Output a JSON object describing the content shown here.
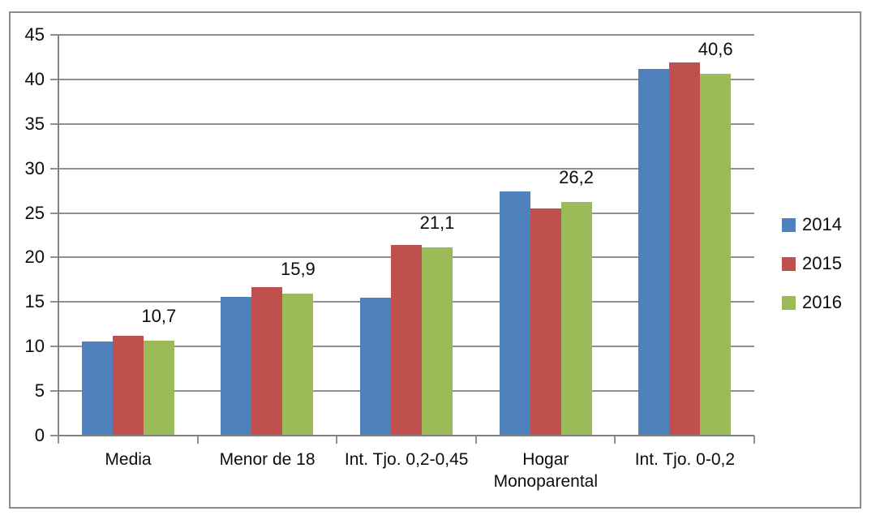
{
  "chart_data": {
    "type": "bar",
    "title": "",
    "xlabel": "",
    "ylabel": "",
    "categories": [
      "Media",
      "Menor de 18",
      "Int. Tjo. 0,2-0,45",
      "Hogar Monoparental",
      "Int. Tjo. 0-0,2"
    ],
    "series": [
      {
        "name": "2014",
        "color": "#4F81BD",
        "values": [
          10.6,
          15.6,
          15.5,
          27.4,
          41.2
        ]
      },
      {
        "name": "2015",
        "color": "#C0504D",
        "values": [
          11.2,
          16.7,
          21.4,
          25.5,
          41.9
        ]
      },
      {
        "name": "2016",
        "color": "#9BBB59",
        "values": [
          10.7,
          15.9,
          21.1,
          26.2,
          40.6
        ]
      }
    ],
    "data_labels": {
      "series": "2016",
      "texts": [
        "10,7",
        "15,9",
        "21,1",
        "26,2",
        "40,6"
      ]
    },
    "y_ticks": [
      0,
      5,
      10,
      15,
      20,
      25,
      30,
      35,
      40,
      45
    ],
    "ylim": [
      0,
      45
    ],
    "grid": true,
    "legend_position": "right"
  },
  "style_colors": {
    "frame_border": "#8c8c8c",
    "gridline": "#8f8f8f",
    "axis": "#828282",
    "text": "#0d0d0d",
    "background": "#ffffff"
  }
}
